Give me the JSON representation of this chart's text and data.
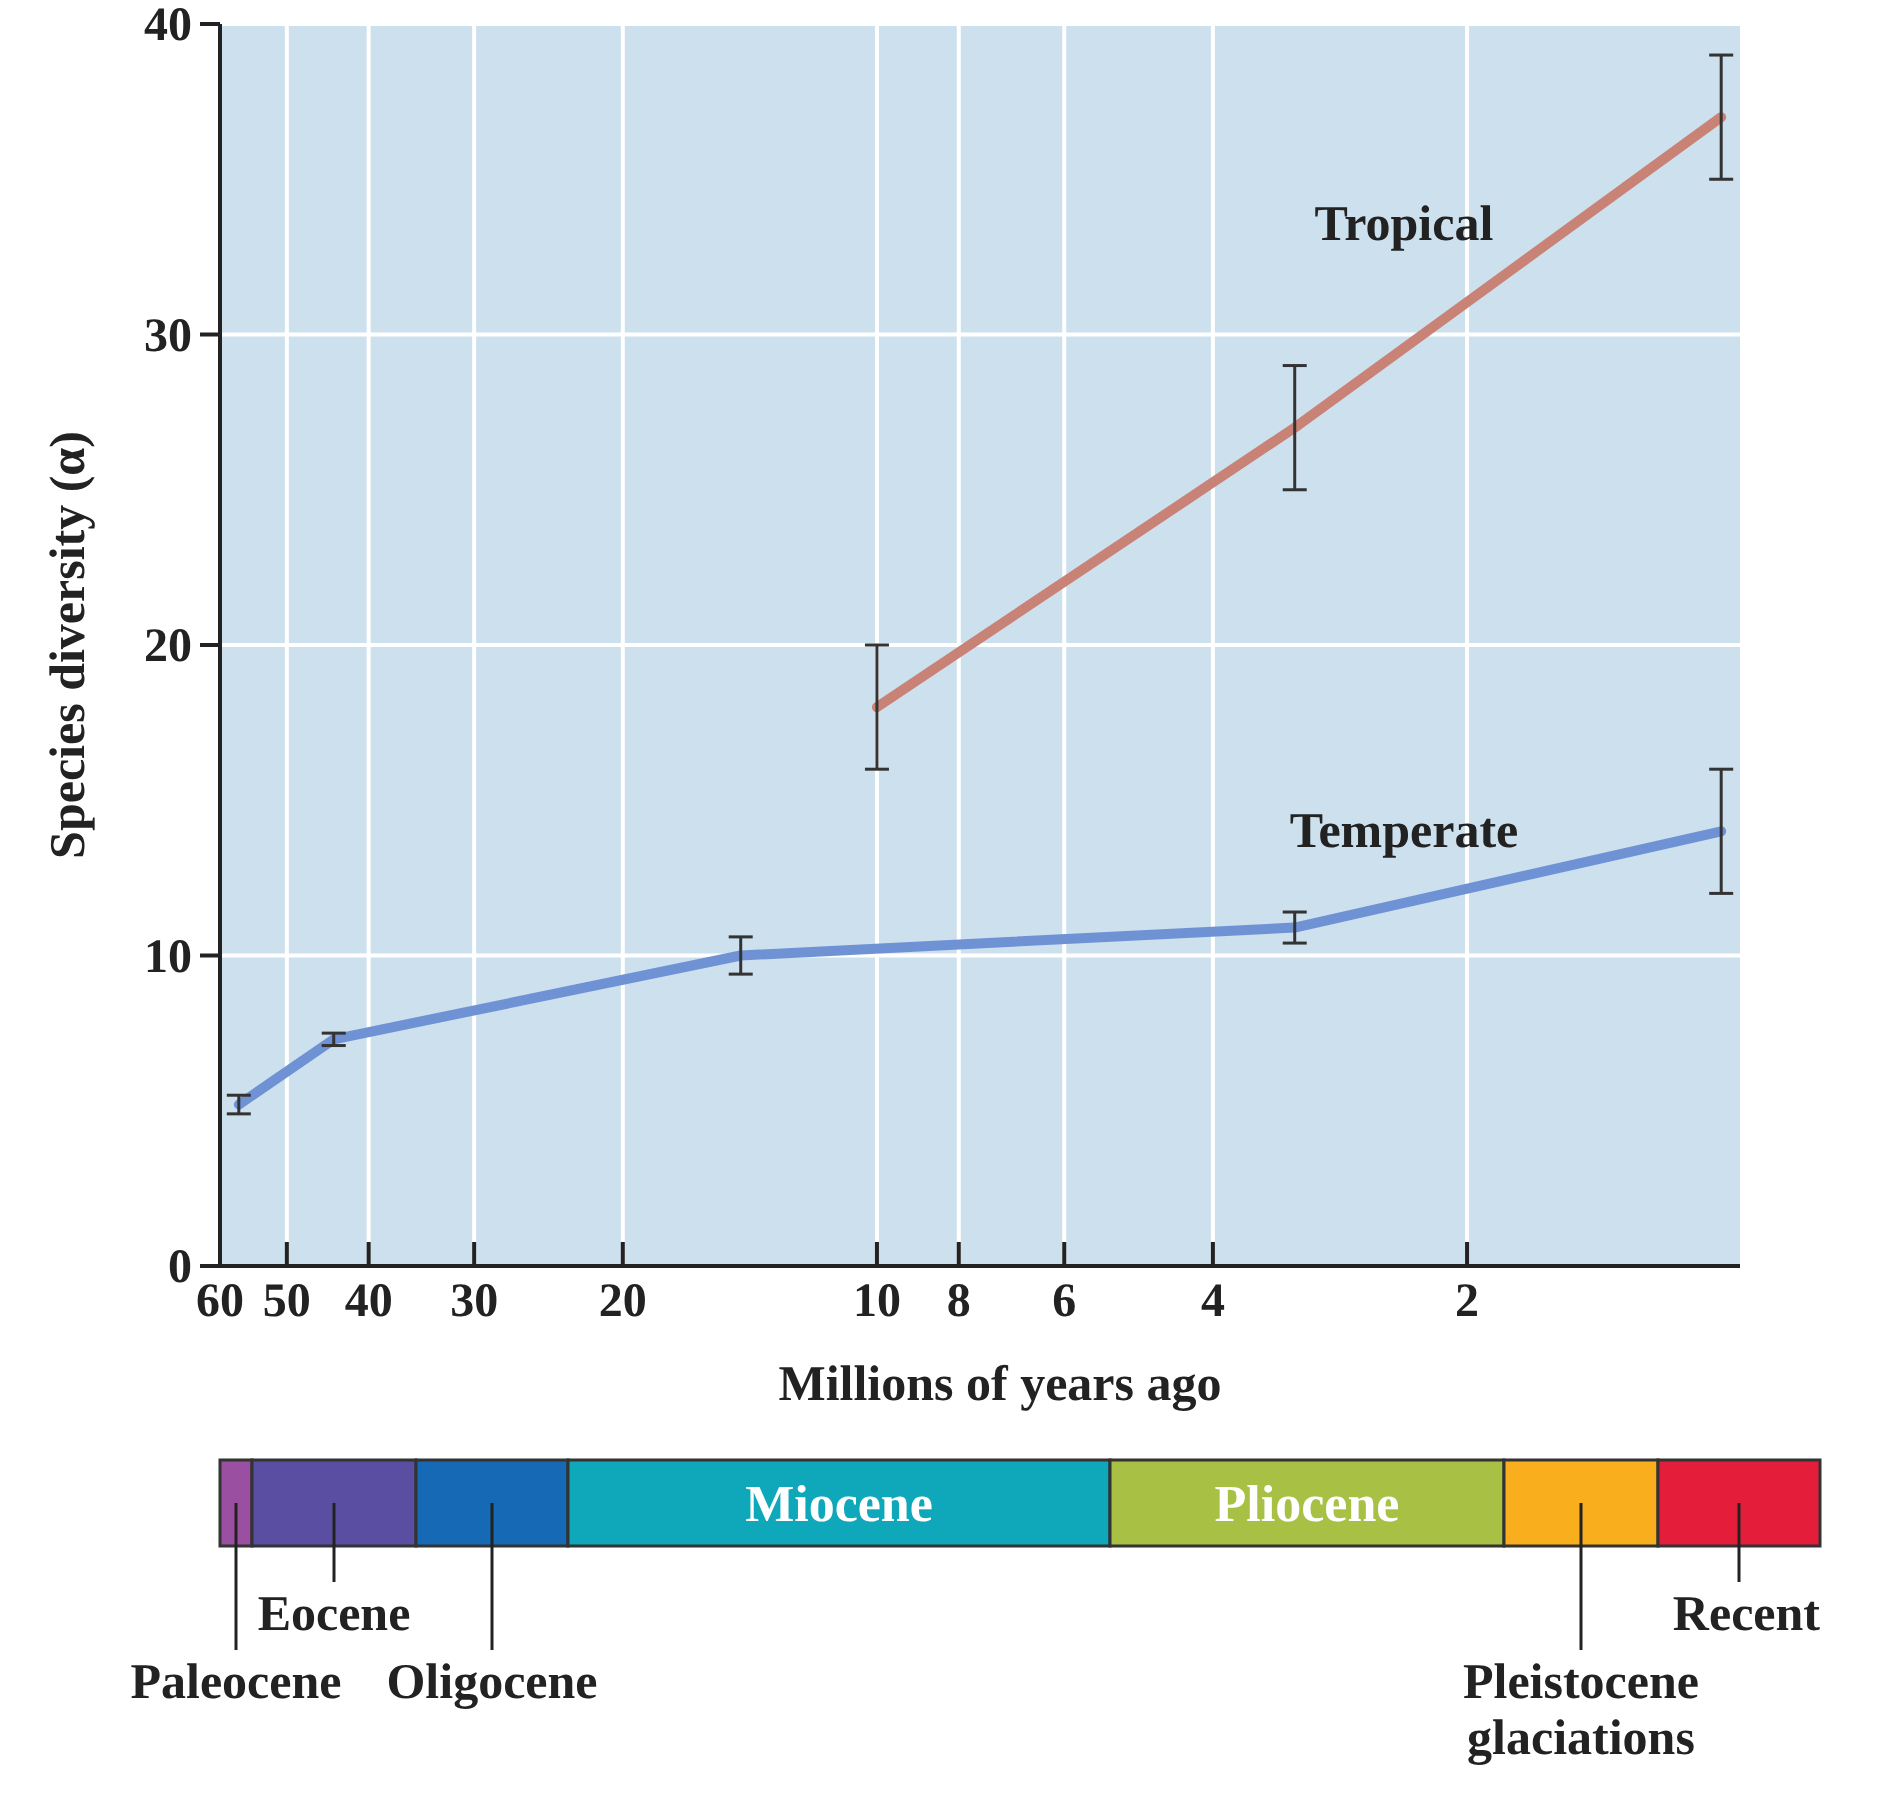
{
  "chart_data": {
    "type": "line",
    "xlabel": "Millions of years ago",
    "ylabel": "Species diversity (α)",
    "log": "x",
    "xlim": [
      60,
      0.95
    ],
    "xticks": [
      60,
      50,
      40,
      30,
      20,
      10,
      8,
      6,
      4,
      2
    ],
    "ylim": [
      0,
      40
    ],
    "yticks": [
      0,
      10,
      20,
      30,
      40
    ],
    "grid": true,
    "marker": "none",
    "series": [
      {
        "name": "Tropical",
        "color": "#c98276",
        "x": [
          10,
          3.2,
          1
        ],
        "values": [
          18,
          27,
          37
        ],
        "errors": [
          2,
          2,
          2
        ]
      },
      {
        "name": "Temperate",
        "color": "#6f92d4",
        "x": [
          57,
          44,
          14.5,
          3.2,
          1
        ],
        "values": [
          5.2,
          7.3,
          10,
          10.9,
          14
        ],
        "errors": [
          0.3,
          0.2,
          0.6,
          0.5,
          2
        ]
      }
    ],
    "annotations": [
      "Paleocene",
      "Eocene",
      "Oligocene",
      "Miocene",
      "Pliocene",
      "Pleistocene glaciations",
      "Recent"
    ]
  }
}
